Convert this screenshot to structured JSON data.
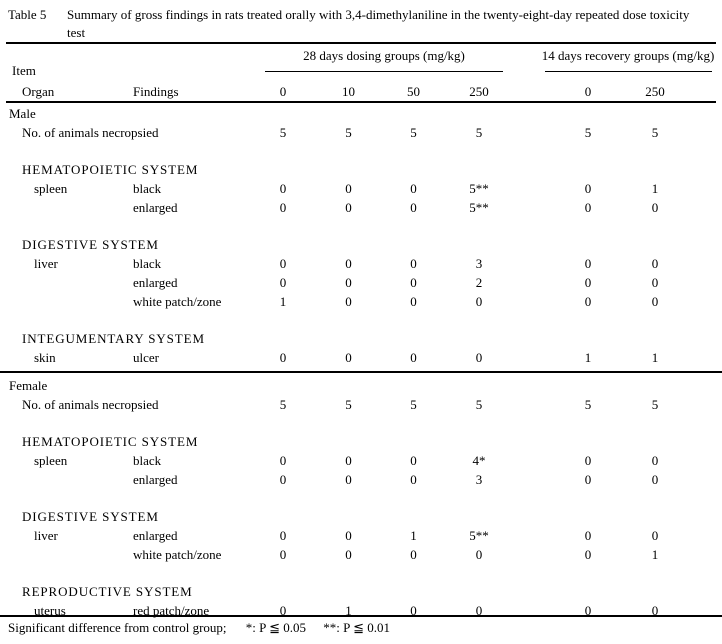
{
  "colors": {
    "background": "#ffffff",
    "text": "#000000",
    "rule": "#000000"
  },
  "title": {
    "label": "Table 5",
    "line1": "Summary of gross findings in rats treated orally with 3,4-dimethylaniline in the twenty-eight-day repeated dose toxicity",
    "line2": "test"
  },
  "header": {
    "item_label": "Item",
    "organ_label": "Organ",
    "findings_label": "Findings",
    "groups": [
      {
        "label": "28 days dosing groups (mg/kg)",
        "doses": [
          "0",
          "10",
          "50",
          "250"
        ]
      },
      {
        "label": "14 days recovery groups (mg/kg)",
        "doses": [
          "0",
          "250"
        ]
      }
    ]
  },
  "table": {
    "sections": [
      {
        "sex": "Male",
        "count_label": "No. of animals necropsied",
        "counts": [
          "5",
          "5",
          "5",
          "5",
          "5",
          "5"
        ],
        "systems": [
          {
            "name": "HEMATOPOIETIC SYSTEM",
            "rows": [
              {
                "organ": "spleen",
                "finding": "black",
                "values": [
                  "0",
                  "0",
                  "0",
                  "5**",
                  "0",
                  "1"
                ]
              },
              {
                "organ": "",
                "finding": "enlarged",
                "values": [
                  "0",
                  "0",
                  "0",
                  "5**",
                  "0",
                  "0"
                ]
              }
            ]
          },
          {
            "name": "DIGESTIVE SYSTEM",
            "rows": [
              {
                "organ": "liver",
                "finding": "black",
                "values": [
                  "0",
                  "0",
                  "0",
                  "3",
                  "0",
                  "0"
                ]
              },
              {
                "organ": "",
                "finding": "enlarged",
                "values": [
                  "0",
                  "0",
                  "0",
                  "2",
                  "0",
                  "0"
                ]
              },
              {
                "organ": "",
                "finding": "white patch/zone",
                "values": [
                  "1",
                  "0",
                  "0",
                  "0",
                  "0",
                  "0"
                ]
              }
            ]
          },
          {
            "name": "INTEGUMENTARY SYSTEM",
            "rows": [
              {
                "organ": "skin",
                "finding": "ulcer",
                "values": [
                  "0",
                  "0",
                  "0",
                  "0",
                  "1",
                  "1"
                ]
              }
            ]
          }
        ]
      },
      {
        "sex": "Female",
        "count_label": "No. of animals necropsied",
        "counts": [
          "5",
          "5",
          "5",
          "5",
          "5",
          "5"
        ],
        "systems": [
          {
            "name": "HEMATOPOIETIC SYSTEM",
            "rows": [
              {
                "organ": "spleen",
                "finding": "black",
                "values": [
                  "0",
                  "0",
                  "0",
                  "4*",
                  "0",
                  "0"
                ]
              },
              {
                "organ": "",
                "finding": "enlarged",
                "values": [
                  "0",
                  "0",
                  "0",
                  "3",
                  "0",
                  "0"
                ]
              }
            ]
          },
          {
            "name": "DIGESTIVE SYSTEM",
            "rows": [
              {
                "organ": "liver",
                "finding": "enlarged",
                "values": [
                  "0",
                  "0",
                  "1",
                  "5**",
                  "0",
                  "0"
                ]
              },
              {
                "organ": "",
                "finding": "white patch/zone",
                "values": [
                  "0",
                  "0",
                  "0",
                  "0",
                  "0",
                  "1"
                ]
              }
            ]
          },
          {
            "name": "REPRODUCTIVE SYSTEM",
            "rows": [
              {
                "organ": "uterus",
                "finding": "red patch/zone",
                "values": [
                  "0",
                  "1",
                  "0",
                  "0",
                  "0",
                  "0"
                ]
              }
            ]
          }
        ]
      }
    ]
  },
  "footnote": {
    "text": "Significant difference from control group;",
    "sig1": "*: P ≦ 0.05",
    "sig2": "**: P ≦ 0.01"
  }
}
